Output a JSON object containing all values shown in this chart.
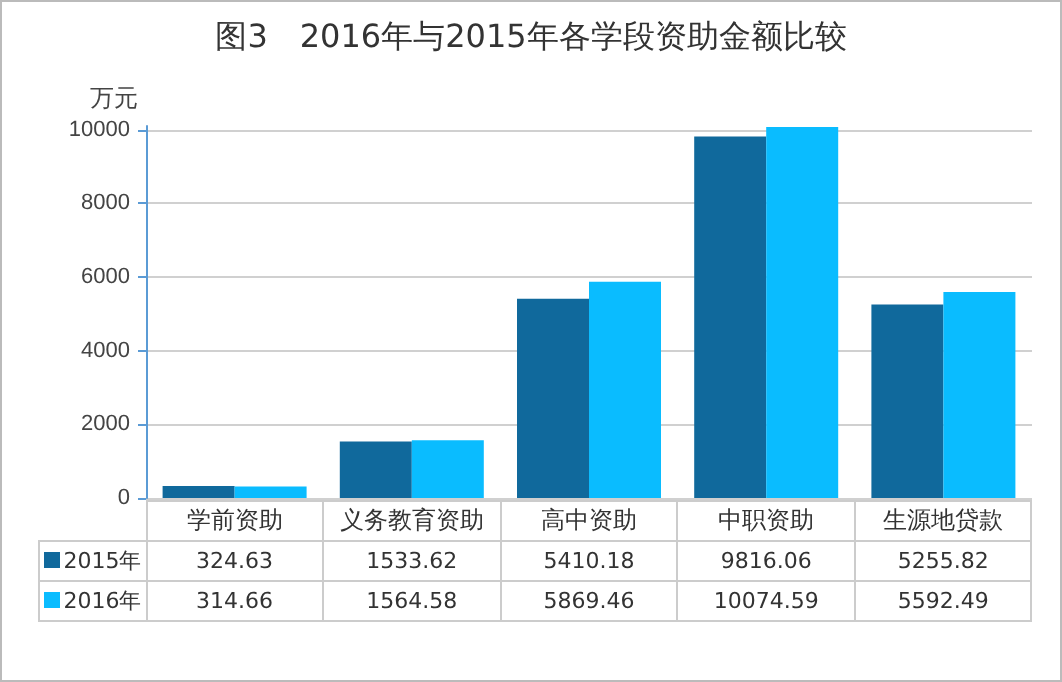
{
  "chart_data": {
    "type": "bar",
    "title": "图3　2016年与2015年各学段资助金额比较",
    "ylabel": "万元",
    "categories": [
      "学前资助",
      "义务教育资助",
      "高中资助",
      "中职资助",
      "生源地贷款"
    ],
    "series": [
      {
        "name": "2015年",
        "color": "#10699c",
        "values": [
          324.63,
          1533.62,
          5410.18,
          9816.06,
          5255.82
        ]
      },
      {
        "name": "2016年",
        "color": "#0abcff",
        "values": [
          314.66,
          1564.58,
          5869.46,
          10074.59,
          5592.49
        ]
      }
    ],
    "ylim": [
      0,
      10100
    ],
    "yticks": [
      0,
      2000,
      4000,
      6000,
      8000,
      10000
    ],
    "grid": "y",
    "legend": "bottom",
    "data_labels": true
  }
}
